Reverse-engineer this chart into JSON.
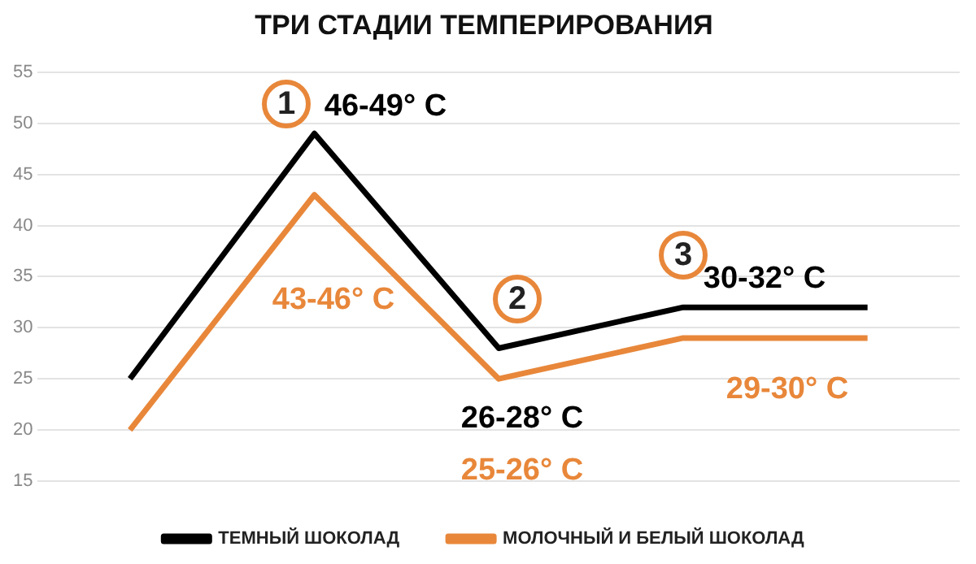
{
  "chart_data": {
    "type": "line",
    "title": "ТРИ СТАДИИ ТЕМПЕРИРОВАНИЯ",
    "categories": [
      null,
      null,
      null,
      null,
      null
    ],
    "series": [
      {
        "name": "ТЕМНЫЙ ШОКОЛАД",
        "color": "#000000",
        "values": [
          25,
          49,
          28,
          32,
          32
        ]
      },
      {
        "name": "МОЛОЧНЫЙ И БЕЛЫЙ ШОКОЛАД",
        "color": "#e8873a",
        "values": [
          20,
          43,
          25,
          29,
          29
        ]
      }
    ],
    "ylim": [
      15,
      55
    ],
    "yticks": [
      15,
      20,
      25,
      30,
      35,
      40,
      45,
      50,
      55
    ],
    "grid": "y",
    "legend": "bottom",
    "marker": "none",
    "line_style": "solid",
    "tick_labels": "y",
    "annotations": [
      "1",
      "46-49° C",
      "43-46° C",
      "2",
      "26-28° C",
      "25-26° C",
      "3",
      "30-32° C",
      "29-30° C"
    ]
  }
}
